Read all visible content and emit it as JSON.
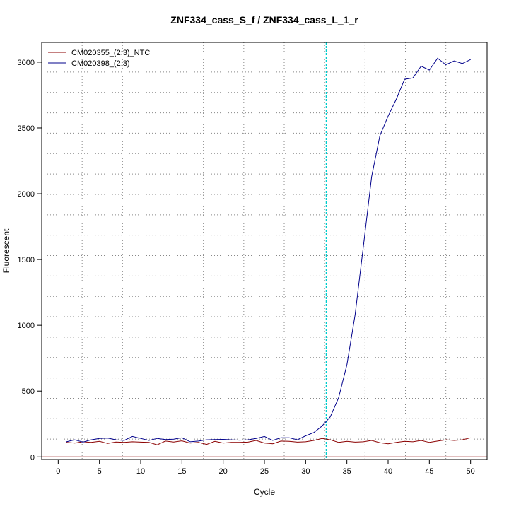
{
  "chart_data": {
    "type": "line",
    "title": "ZNF334_cass_S_f / ZNF334_cass_L_1_r",
    "xlabel": "Cycle",
    "ylabel": "Fluorescent",
    "xlim": [
      -2,
      52
    ],
    "ylim": [
      -20,
      3150
    ],
    "x_ticks": [
      0,
      5,
      10,
      15,
      20,
      25,
      30,
      35,
      40,
      45,
      50
    ],
    "y_ticks": [
      0,
      500,
      1000,
      1500,
      2000,
      2500,
      3000
    ],
    "grid": true,
    "grid_style": "dotted",
    "x_grid": [
      2.9,
      7.8,
      12.7,
      17.6,
      22.5,
      27.4,
      32.3,
      37.2,
      42.1,
      47.0
    ],
    "y_grid": [
      -20,
      135,
      290,
      445,
      600,
      755,
      910,
      1065,
      1220,
      1375,
      1530,
      1685,
      1840,
      1995,
      2150,
      2305,
      2460,
      2615,
      2770,
      2925
    ],
    "legend_position": "top-left",
    "threshold": {
      "y": 0,
      "color": "#8b0000"
    },
    "cycle_marker": {
      "x": 32.5,
      "color": "#00cdcd"
    },
    "x": [
      1,
      2,
      3,
      4,
      5,
      6,
      7,
      8,
      9,
      10,
      11,
      12,
      13,
      14,
      15,
      16,
      17,
      18,
      19,
      20,
      21,
      22,
      23,
      24,
      25,
      26,
      27,
      28,
      29,
      30,
      31,
      32,
      33,
      34,
      35,
      36,
      37,
      38,
      39,
      40,
      41,
      42,
      43,
      44,
      45,
      46,
      47,
      48,
      49,
      50
    ],
    "series": [
      {
        "name": "CM020355_(2:3)_NTC",
        "color": "#8b0000",
        "values": [
          110,
          105,
          115,
          110,
          118,
          102,
          113,
          110,
          115,
          112,
          110,
          92,
          120,
          113,
          122,
          105,
          110,
          95,
          118,
          105,
          110,
          110,
          112,
          125,
          105,
          100,
          120,
          118,
          112,
          115,
          125,
          140,
          130,
          110,
          118,
          112,
          115,
          125,
          108,
          100,
          110,
          118,
          115,
          125,
          110,
          120,
          130,
          125,
          130,
          145
        ]
      },
      {
        "name": "CM020398_(2:3)",
        "color": "#00008b",
        "values": [
          115,
          130,
          112,
          130,
          140,
          143,
          130,
          125,
          155,
          140,
          125,
          140,
          132,
          135,
          145,
          115,
          120,
          130,
          132,
          133,
          130,
          127,
          130,
          140,
          155,
          125,
          145,
          145,
          130,
          160,
          185,
          235,
          305,
          450,
          700,
          1080,
          1600,
          2130,
          2440,
          2590,
          2720,
          2870,
          2880,
          2970,
          2940,
          3030,
          2980,
          3010,
          2990,
          3020
        ]
      }
    ]
  }
}
